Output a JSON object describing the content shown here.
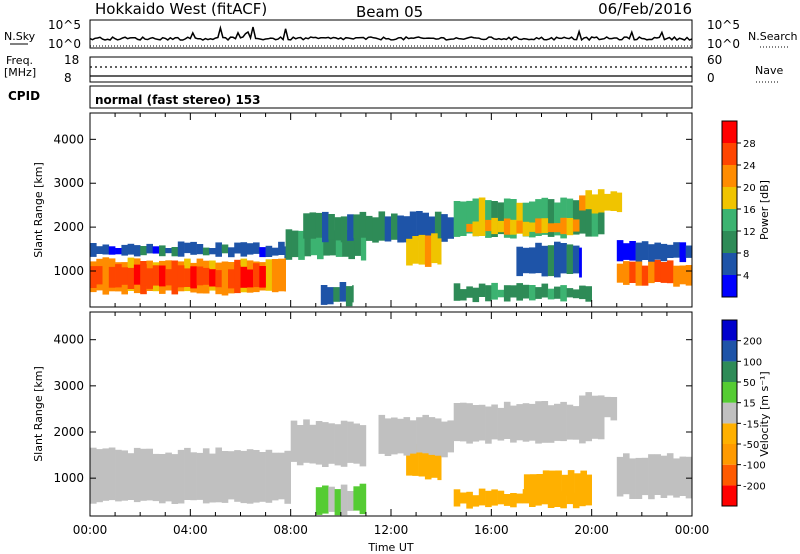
{
  "header": {
    "radar": "Hokkaido West (fitACF)",
    "beam": "Beam 05",
    "date": "06/Feb/2016"
  },
  "noise_panel": {
    "left_label": "N.Sky",
    "right_label": "N.Search",
    "y_top": "10^5",
    "y_bottom": "10^0",
    "y_top_right": "10^5",
    "y_bottom_right": "10^0"
  },
  "freq_panel": {
    "left_label_1": "Freq.",
    "left_label_2": "[MHz]",
    "right_label": "Nave",
    "y_top": "18",
    "y_bottom": "8",
    "y_top_right": "60",
    "y_bottom_right": "0"
  },
  "cpid_panel": {
    "label": "CPID",
    "text": "normal (fast stereo) 153"
  },
  "x_axis": {
    "label": "Time UT",
    "ticks": [
      "00:00",
      "04:00",
      "08:00",
      "12:00",
      "16:00",
      "20:00",
      "00:00"
    ]
  },
  "colors": {
    "power": [
      "#0000ff",
      "#1e54a8",
      "#2e8b57",
      "#3cb371",
      "#f0c400",
      "#ff8c00",
      "#ff4500",
      "#ff0000"
    ],
    "velocity": [
      "#ff0000",
      "#ff5a00",
      "#ff9a00",
      "#ffb000",
      "#c0c0c0",
      "#55cc33",
      "#2e8b57",
      "#1e54a8",
      "#0000cc"
    ]
  },
  "chart_data": [
    {
      "type": "heatmap",
      "title": "Power",
      "ylabel": "Slant Range [km]",
      "xlabel": "Time UT",
      "x_unit": "UT hour",
      "xlim": [
        0,
        24
      ],
      "ylim": [
        180,
        4600
      ],
      "yticks": [
        "1000",
        "2000",
        "3000",
        "4000"
      ],
      "colorbar": {
        "label": "Power [dB]",
        "ticks": [
          "4",
          "8",
          "12",
          "16",
          "20",
          "24",
          "28"
        ],
        "range": [
          0,
          32
        ]
      },
      "regions": [
        {
          "t0": 0.0,
          "t1": 7.8,
          "r_low": 500,
          "r_high": 1250,
          "value": 22
        },
        {
          "t0": 0.0,
          "t1": 7.0,
          "r_low": 650,
          "r_high": 1100,
          "value": 26
        },
        {
          "t0": 0.0,
          "t1": 8.2,
          "r_low": 1350,
          "r_high": 1600,
          "value": 6
        },
        {
          "t0": 7.8,
          "t1": 11.0,
          "r_low": 1300,
          "r_high": 1900,
          "value": 12
        },
        {
          "t0": 8.5,
          "t1": 14.5,
          "r_low": 1700,
          "r_high": 2300,
          "value": 8
        },
        {
          "t0": 9.2,
          "t1": 10.5,
          "r_low": 250,
          "r_high": 700,
          "value": 8
        },
        {
          "t0": 12.6,
          "t1": 14.0,
          "r_low": 1150,
          "r_high": 1800,
          "value": 18
        },
        {
          "t0": 14.5,
          "t1": 20.5,
          "r_low": 1800,
          "r_high": 2600,
          "value": 14
        },
        {
          "t0": 15.0,
          "t1": 19.5,
          "r_low": 1850,
          "r_high": 2150,
          "value": 20
        },
        {
          "t0": 19.5,
          "t1": 21.2,
          "r_low": 2350,
          "r_high": 2800,
          "value": 18
        },
        {
          "t0": 14.5,
          "t1": 20.0,
          "r_low": 350,
          "r_high": 650,
          "value": 10
        },
        {
          "t0": 17.0,
          "t1": 19.6,
          "r_low": 900,
          "r_high": 1600,
          "value": 6
        },
        {
          "t0": 21.0,
          "t1": 24.0,
          "r_low": 700,
          "r_high": 1200,
          "value": 22
        },
        {
          "t0": 21.0,
          "t1": 24.0,
          "r_low": 1250,
          "r_high": 1650,
          "value": 6
        }
      ]
    },
    {
      "type": "heatmap",
      "title": "Velocity",
      "ylabel": "Slant Range [km]",
      "xlabel": "Time UT",
      "x_unit": "UT hour",
      "xlim": [
        0,
        24
      ],
      "ylim": [
        180,
        4600
      ],
      "yticks": [
        "1000",
        "2000",
        "3000",
        "4000"
      ],
      "colorbar": {
        "label": "Velocity [m s⁻¹]",
        "ticks": [
          "-200",
          "-100",
          "-50",
          "-15",
          "15",
          "50",
          "100",
          "200"
        ],
        "range": [
          -250,
          250
        ]
      },
      "regions": [
        {
          "t0": 0.0,
          "t1": 8.0,
          "r_low": 500,
          "r_high": 1600,
          "value": 0
        },
        {
          "t0": 8.0,
          "t1": 11.0,
          "r_low": 1300,
          "r_high": 2200,
          "value": 0
        },
        {
          "t0": 9.0,
          "t1": 11.0,
          "r_low": 250,
          "r_high": 800,
          "value": 30
        },
        {
          "t0": 12.6,
          "t1": 14.0,
          "r_low": 1000,
          "r_high": 1700,
          "value": -60
        },
        {
          "t0": 11.5,
          "t1": 14.5,
          "r_low": 1500,
          "r_high": 2300,
          "value": 0
        },
        {
          "t0": 14.5,
          "t1": 20.5,
          "r_low": 1800,
          "r_high": 2600,
          "value": 0
        },
        {
          "t0": 19.5,
          "t1": 21.0,
          "r_low": 2300,
          "r_high": 2800,
          "value": 0
        },
        {
          "t0": 14.5,
          "t1": 20.0,
          "r_low": 400,
          "r_high": 700,
          "value": -60
        },
        {
          "t0": 17.3,
          "t1": 20.0,
          "r_low": 600,
          "r_high": 1100,
          "value": -50
        },
        {
          "t0": 21.0,
          "t1": 24.0,
          "r_low": 600,
          "r_high": 1500,
          "value": 0
        }
      ]
    }
  ]
}
